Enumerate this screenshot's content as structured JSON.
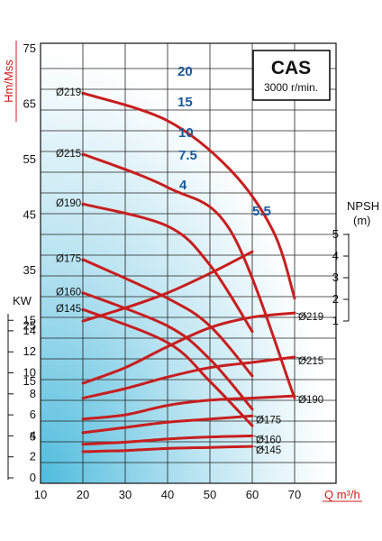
{
  "chart_data": {
    "type": "line",
    "model": "CAS",
    "speed": "3000 r/min.",
    "x_axis": {
      "label": "Q m³/h",
      "ticks": [
        10,
        20,
        30,
        40,
        50,
        60,
        70
      ],
      "range": [
        10,
        80
      ]
    },
    "head_axis": {
      "label": "Hm/Mss",
      "ticks": [
        75,
        65,
        55,
        45,
        35,
        25,
        15,
        5
      ]
    },
    "npsh_axis": {
      "label": "NPSH",
      "unit": "(m)",
      "ticks": [
        5,
        4,
        3,
        2,
        1
      ]
    },
    "power_axis": {
      "label": "KW",
      "ticks": [
        15,
        14,
        12,
        10,
        8,
        6,
        4,
        2,
        0
      ]
    },
    "head_curves": [
      {
        "impeller": "Ø219",
        "points": [
          [
            20,
            67
          ],
          [
            40,
            62
          ],
          [
            55,
            53
          ],
          [
            65,
            42
          ],
          [
            70,
            30
          ]
        ]
      },
      {
        "impeller": "Ø215",
        "points": [
          [
            20,
            56
          ],
          [
            40,
            50
          ],
          [
            55,
            42
          ],
          [
            70,
            12
          ]
        ]
      },
      {
        "impeller": "Ø190",
        "points": [
          [
            20,
            47
          ],
          [
            40,
            43
          ],
          [
            50,
            36
          ],
          [
            60,
            24
          ]
        ]
      },
      {
        "impeller": "Ø175",
        "points": [
          [
            20,
            37
          ],
          [
            40,
            30
          ],
          [
            50,
            25
          ],
          [
            60,
            16
          ]
        ]
      },
      {
        "impeller": "Ø160",
        "points": [
          [
            20,
            31
          ],
          [
            40,
            25
          ],
          [
            50,
            19
          ],
          [
            60,
            10
          ]
        ]
      },
      {
        "impeller": "Ø145",
        "points": [
          [
            20,
            28
          ],
          [
            40,
            22
          ],
          [
            50,
            15
          ],
          [
            60,
            7
          ]
        ]
      }
    ],
    "kw_curve_labels": [
      {
        "text": "20",
        "q": 43
      },
      {
        "text": "15",
        "q": 43
      },
      {
        "text": "10",
        "q": 43
      },
      {
        "text": "7.5",
        "q": 43
      },
      {
        "text": "4",
        "q": 43
      },
      {
        "text": "5.5",
        "q": 62
      }
    ],
    "npsh_curve": {
      "points": [
        [
          20,
          1.0
        ],
        [
          30,
          1.6
        ],
        [
          40,
          2.3
        ],
        [
          50,
          3.2
        ],
        [
          60,
          4.2
        ]
      ]
    },
    "power_curves": [
      {
        "impeller": "Ø219",
        "points": [
          [
            20,
            9.0
          ],
          [
            30,
            10.5
          ],
          [
            40,
            12.5
          ],
          [
            50,
            14.3
          ],
          [
            60,
            15.3
          ],
          [
            70,
            15.7
          ]
        ]
      },
      {
        "impeller": "Ø215",
        "points": [
          [
            20,
            7.6
          ],
          [
            30,
            8.5
          ],
          [
            40,
            9.6
          ],
          [
            50,
            10.5
          ],
          [
            60,
            11.0
          ],
          [
            70,
            11.5
          ]
        ]
      },
      {
        "impeller": "Ø190",
        "points": [
          [
            20,
            5.6
          ],
          [
            30,
            6.0
          ],
          [
            40,
            6.9
          ],
          [
            50,
            7.4
          ],
          [
            60,
            7.6
          ],
          [
            70,
            7.8
          ]
        ]
      },
      {
        "impeller": "Ø175",
        "points": [
          [
            20,
            4.3
          ],
          [
            30,
            4.8
          ],
          [
            40,
            5.3
          ],
          [
            50,
            5.6
          ],
          [
            60,
            5.9
          ]
        ]
      },
      {
        "impeller": "Ø160",
        "points": [
          [
            20,
            3.2
          ],
          [
            30,
            3.4
          ],
          [
            40,
            3.7
          ],
          [
            50,
            3.9
          ],
          [
            60,
            4.0
          ]
        ]
      },
      {
        "impeller": "Ø145",
        "points": [
          [
            20,
            2.5
          ],
          [
            30,
            2.6
          ],
          [
            40,
            2.8
          ],
          [
            50,
            2.9
          ],
          [
            60,
            3.0
          ]
        ]
      }
    ],
    "colors": {
      "curve": "#c81e1e",
      "kw_label": "#1a5a9a",
      "axis_label": "#d11a1a",
      "gradient": "#5ec3e2"
    }
  }
}
